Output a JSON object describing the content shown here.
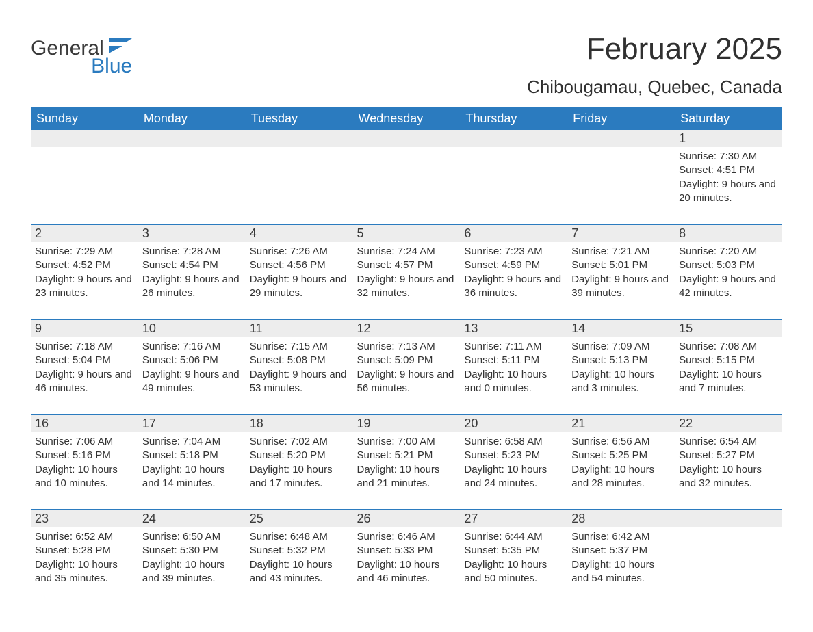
{
  "brand": {
    "word1": "General",
    "word2": "Blue"
  },
  "colors": {
    "accent": "#2b7bbf",
    "header_bg": "#2b7bbf",
    "header_text": "#ffffff",
    "daynum_bg": "#ededed",
    "text": "#333333",
    "page_bg": "#ffffff"
  },
  "title": "February 2025",
  "location": "Chibougamau, Quebec, Canada",
  "weekdays": [
    "Sunday",
    "Monday",
    "Tuesday",
    "Wednesday",
    "Thursday",
    "Friday",
    "Saturday"
  ],
  "field_labels": {
    "sunrise": "Sunrise",
    "sunset": "Sunset",
    "daylight": "Daylight"
  },
  "weeks": [
    [
      null,
      null,
      null,
      null,
      null,
      null,
      {
        "n": "1",
        "sunrise": "7:30 AM",
        "sunset": "4:51 PM",
        "daylight_h": "9",
        "daylight_m": "20"
      }
    ],
    [
      {
        "n": "2",
        "sunrise": "7:29 AM",
        "sunset": "4:52 PM",
        "daylight_h": "9",
        "daylight_m": "23"
      },
      {
        "n": "3",
        "sunrise": "7:28 AM",
        "sunset": "4:54 PM",
        "daylight_h": "9",
        "daylight_m": "26"
      },
      {
        "n": "4",
        "sunrise": "7:26 AM",
        "sunset": "4:56 PM",
        "daylight_h": "9",
        "daylight_m": "29"
      },
      {
        "n": "5",
        "sunrise": "7:24 AM",
        "sunset": "4:57 PM",
        "daylight_h": "9",
        "daylight_m": "32"
      },
      {
        "n": "6",
        "sunrise": "7:23 AM",
        "sunset": "4:59 PM",
        "daylight_h": "9",
        "daylight_m": "36"
      },
      {
        "n": "7",
        "sunrise": "7:21 AM",
        "sunset": "5:01 PM",
        "daylight_h": "9",
        "daylight_m": "39"
      },
      {
        "n": "8",
        "sunrise": "7:20 AM",
        "sunset": "5:03 PM",
        "daylight_h": "9",
        "daylight_m": "42"
      }
    ],
    [
      {
        "n": "9",
        "sunrise": "7:18 AM",
        "sunset": "5:04 PM",
        "daylight_h": "9",
        "daylight_m": "46"
      },
      {
        "n": "10",
        "sunrise": "7:16 AM",
        "sunset": "5:06 PM",
        "daylight_h": "9",
        "daylight_m": "49"
      },
      {
        "n": "11",
        "sunrise": "7:15 AM",
        "sunset": "5:08 PM",
        "daylight_h": "9",
        "daylight_m": "53"
      },
      {
        "n": "12",
        "sunrise": "7:13 AM",
        "sunset": "5:09 PM",
        "daylight_h": "9",
        "daylight_m": "56"
      },
      {
        "n": "13",
        "sunrise": "7:11 AM",
        "sunset": "5:11 PM",
        "daylight_h": "10",
        "daylight_m": "0"
      },
      {
        "n": "14",
        "sunrise": "7:09 AM",
        "sunset": "5:13 PM",
        "daylight_h": "10",
        "daylight_m": "3"
      },
      {
        "n": "15",
        "sunrise": "7:08 AM",
        "sunset": "5:15 PM",
        "daylight_h": "10",
        "daylight_m": "7"
      }
    ],
    [
      {
        "n": "16",
        "sunrise": "7:06 AM",
        "sunset": "5:16 PM",
        "daylight_h": "10",
        "daylight_m": "10"
      },
      {
        "n": "17",
        "sunrise": "7:04 AM",
        "sunset": "5:18 PM",
        "daylight_h": "10",
        "daylight_m": "14"
      },
      {
        "n": "18",
        "sunrise": "7:02 AM",
        "sunset": "5:20 PM",
        "daylight_h": "10",
        "daylight_m": "17"
      },
      {
        "n": "19",
        "sunrise": "7:00 AM",
        "sunset": "5:21 PM",
        "daylight_h": "10",
        "daylight_m": "21"
      },
      {
        "n": "20",
        "sunrise": "6:58 AM",
        "sunset": "5:23 PM",
        "daylight_h": "10",
        "daylight_m": "24"
      },
      {
        "n": "21",
        "sunrise": "6:56 AM",
        "sunset": "5:25 PM",
        "daylight_h": "10",
        "daylight_m": "28"
      },
      {
        "n": "22",
        "sunrise": "6:54 AM",
        "sunset": "5:27 PM",
        "daylight_h": "10",
        "daylight_m": "32"
      }
    ],
    [
      {
        "n": "23",
        "sunrise": "6:52 AM",
        "sunset": "5:28 PM",
        "daylight_h": "10",
        "daylight_m": "35"
      },
      {
        "n": "24",
        "sunrise": "6:50 AM",
        "sunset": "5:30 PM",
        "daylight_h": "10",
        "daylight_m": "39"
      },
      {
        "n": "25",
        "sunrise": "6:48 AM",
        "sunset": "5:32 PM",
        "daylight_h": "10",
        "daylight_m": "43"
      },
      {
        "n": "26",
        "sunrise": "6:46 AM",
        "sunset": "5:33 PM",
        "daylight_h": "10",
        "daylight_m": "46"
      },
      {
        "n": "27",
        "sunrise": "6:44 AM",
        "sunset": "5:35 PM",
        "daylight_h": "10",
        "daylight_m": "50"
      },
      {
        "n": "28",
        "sunrise": "6:42 AM",
        "sunset": "5:37 PM",
        "daylight_h": "10",
        "daylight_m": "54"
      },
      null
    ]
  ]
}
